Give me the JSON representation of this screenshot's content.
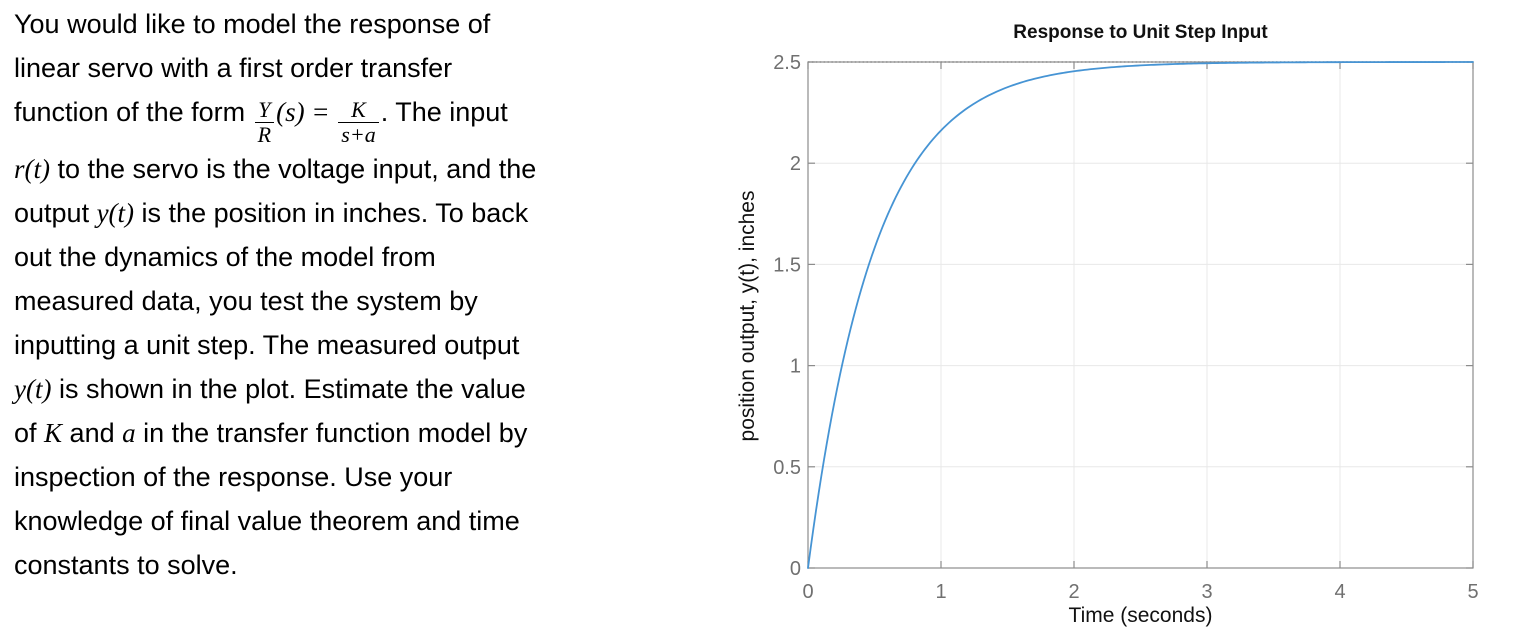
{
  "problem": {
    "lines": [
      [
        {
          "t": "You would like to model the response of"
        }
      ],
      [
        {
          "t": "linear servo with a first order transfer"
        }
      ],
      [
        {
          "t": "function of the form "
        },
        {
          "frac": {
            "num": "Y",
            "den": "R"
          }
        },
        {
          "t": "(s) = ",
          "style": "math"
        },
        {
          "frac": {
            "num": "K",
            "den": "s+a"
          }
        },
        {
          "t": ". The input"
        }
      ],
      [
        {
          "t": "r(t)",
          "style": "math"
        },
        {
          "t": " to the servo is the voltage input, and the"
        }
      ],
      [
        {
          "t": "output "
        },
        {
          "t": "y(t)",
          "style": "math"
        },
        {
          "t": " is the position in inches. To back"
        }
      ],
      [
        {
          "t": "out the dynamics of the model from"
        }
      ],
      [
        {
          "t": "measured data, you test the system by"
        }
      ],
      [
        {
          "t": "inputting a unit step. The measured output"
        }
      ],
      [
        {
          "t": "y(t)",
          "style": "math"
        },
        {
          "t": " is shown in the plot. Estimate the value"
        }
      ],
      [
        {
          "t": "of "
        },
        {
          "t": "K",
          "style": "math"
        },
        {
          "t": " and "
        },
        {
          "t": "a",
          "style": "math"
        },
        {
          "t": " in the transfer function model by"
        }
      ],
      [
        {
          "t": "inspection of the response. Use your"
        }
      ],
      [
        {
          "t": "knowledge of final value theorem and time"
        }
      ],
      [
        {
          "t": "constants to solve."
        }
      ]
    ]
  },
  "chart_data": {
    "type": "line",
    "title": "Response to Unit Step Input",
    "xlabel": "Time (seconds)",
    "ylabel": "position output, y(t), inches",
    "xlim": [
      0,
      5
    ],
    "ylim": [
      0,
      2.5
    ],
    "x_ticks": [
      0,
      1,
      2,
      3,
      4,
      5
    ],
    "y_ticks": [
      0,
      0.5,
      1,
      1.5,
      2,
      2.5
    ],
    "grid": true,
    "legend": "none",
    "axis_color": "#8c8c8c",
    "grid_color": "#e8e8e8",
    "tick_label_color": "#707070",
    "series": [
      {
        "name": "measured step response y(t)",
        "type": "line",
        "color": "#4694d4",
        "final_value": 2.5,
        "time_constant": 0.5,
        "model": "y(t) = 2.5*(1 - exp(-2*t))",
        "x": [
          0,
          0.25,
          0.5,
          0.75,
          1,
          1.25,
          1.5,
          1.75,
          2,
          2.5,
          3,
          3.5,
          4,
          4.5,
          5
        ],
        "y": [
          0,
          0.98,
          1.58,
          1.94,
          2.16,
          2.29,
          2.38,
          2.42,
          2.45,
          2.48,
          2.49,
          2.5,
          2.5,
          2.5,
          2.5
        ]
      },
      {
        "name": "steady-state asymptote",
        "type": "dotted-hline",
        "color": "#2b2b2b",
        "value": 2.5
      }
    ]
  }
}
